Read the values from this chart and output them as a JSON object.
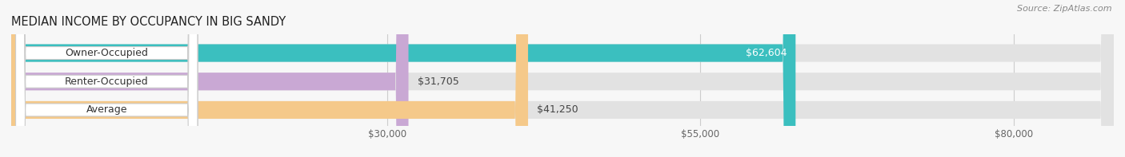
{
  "title": "MEDIAN INCOME BY OCCUPANCY IN BIG SANDY",
  "source_text": "Source: ZipAtlas.com",
  "categories": [
    "Owner-Occupied",
    "Renter-Occupied",
    "Average"
  ],
  "values": [
    62604,
    31705,
    41250
  ],
  "bar_colors": [
    "#3bbfbf",
    "#c9a8d4",
    "#f5c98a"
  ],
  "bar_bg_color": "#e2e2e2",
  "value_labels": [
    "$62,604",
    "$31,705",
    "$41,250"
  ],
  "value_label_inside": [
    true,
    false,
    false
  ],
  "x_ticks": [
    30000,
    55000,
    80000
  ],
  "x_tick_labels": [
    "$30,000",
    "$55,000",
    "$80,000"
  ],
  "x_min": 0,
  "x_max": 88000,
  "background_color": "#f7f7f7",
  "title_fontsize": 10.5,
  "source_fontsize": 8,
  "label_fontsize": 9,
  "value_fontsize": 9
}
